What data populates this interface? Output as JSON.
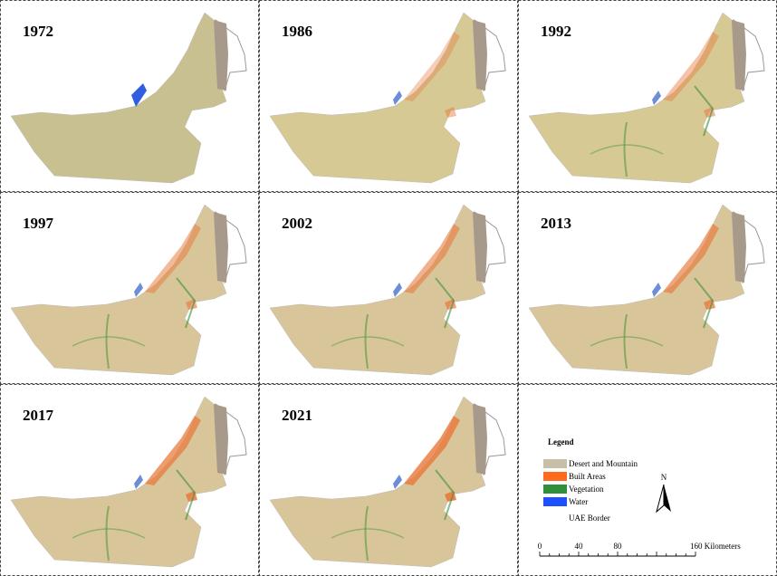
{
  "panels": [
    {
      "year": "1972"
    },
    {
      "year": "1986"
    },
    {
      "year": "1992"
    },
    {
      "year": "1997"
    },
    {
      "year": "2002"
    },
    {
      "year": "2013"
    },
    {
      "year": "2017"
    },
    {
      "year": "2021"
    }
  ],
  "legend": {
    "title": "Legend",
    "items": [
      {
        "label": "Desert and Mountain",
        "color": "#c9bfa8"
      },
      {
        "label": "Built Areas",
        "color": "#ff6a1c"
      },
      {
        "label": "Vegetation",
        "color": "#2f8f3a"
      },
      {
        "label": "Water",
        "color": "#1e50ff"
      }
    ],
    "border_label": "UAE Border"
  },
  "north_arrow": "N",
  "scale_bar": {
    "ticks": [
      "0",
      "40",
      "80"
    ],
    "end_label": "160 Kilometers"
  }
}
